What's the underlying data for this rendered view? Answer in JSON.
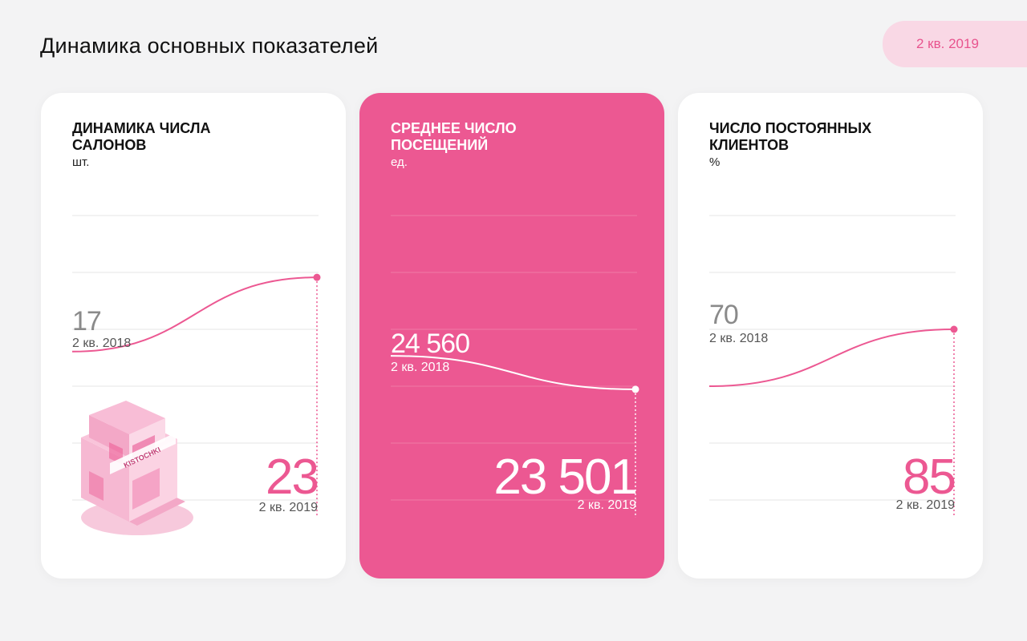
{
  "page_title": "Динамика основных показателей",
  "period_badge": "2 кв. 2019",
  "colors": {
    "accent": "#ec5892",
    "grid_light": "#e6e6e6",
    "grid_on_pink": "#f07aa7"
  },
  "cards": [
    {
      "title": "Динамика числа салонов",
      "unit": "шт.",
      "prev_value": "17",
      "prev_label": "2 кв. 2018",
      "curr_value": "23",
      "curr_label": "2 кв. 2019",
      "illustration_sign": "KISTOCHKI"
    },
    {
      "title": "Среднее число посещений",
      "unit": "ед.",
      "prev_value": "24 560",
      "prev_label": "2 кв. 2018",
      "curr_value": "23 501",
      "curr_label": "2 кв. 2019"
    },
    {
      "title": "Число постоянных клиентов",
      "unit": "%",
      "prev_value": "70",
      "prev_label": "2 кв. 2018",
      "curr_value": "85",
      "curr_label": "2 кв. 2019"
    }
  ],
  "chart_data": [
    {
      "type": "line",
      "title": "Динамика числа салонов",
      "ylabel": "шт.",
      "x": [
        "2 кв. 2018",
        "2 кв. 2019"
      ],
      "series": [
        {
          "values": [
            17,
            23
          ]
        }
      ],
      "ylim": [
        5,
        28
      ],
      "grid": true
    },
    {
      "type": "line",
      "title": "Среднее число посещений",
      "ylabel": "ед.",
      "x": [
        "2 кв. 2018",
        "2 кв. 2019"
      ],
      "series": [
        {
          "values": [
            24560,
            23501
          ]
        }
      ],
      "ylim": [
        20000,
        29000
      ],
      "grid": true
    },
    {
      "type": "line",
      "title": "Число постоянных клиентов",
      "ylabel": "%",
      "x": [
        "2 кв. 2018",
        "2 кв. 2019"
      ],
      "series": [
        {
          "values": [
            70,
            85
          ]
        }
      ],
      "ylim": [
        40,
        115
      ],
      "grid": true
    }
  ]
}
